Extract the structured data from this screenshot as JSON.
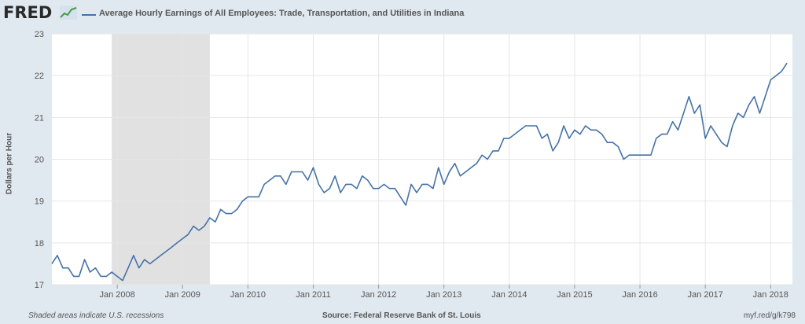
{
  "header": {
    "logo_text": "FRED",
    "logo_icon": "small-line-graph-icon"
  },
  "footer": {
    "left": "Shaded areas indicate U.S. recessions",
    "source": "Source: Federal Reserve Bank of St. Louis",
    "link": "myf.red/g/k798"
  },
  "colors": {
    "background": "#e1e9f0",
    "plot_background": "#ffffff",
    "line": "#4572a7",
    "recession": "#e1e1e1",
    "grid": "#e6e6e6"
  },
  "chart_data": {
    "type": "line",
    "title": "Average Hourly Earnings of All Employees: Trade, Transportation, and Utilities in Indiana",
    "xlabel": "",
    "ylabel": "Dollars per Hour",
    "ylim": [
      17,
      23
    ],
    "yticks": [
      17,
      18,
      19,
      20,
      21,
      22,
      23
    ],
    "xlim": [
      "2007-01",
      "2018-05"
    ],
    "xticks": [
      "Jan 2008",
      "Jan 2009",
      "Jan 2010",
      "Jan 2011",
      "Jan 2012",
      "Jan 2013",
      "Jan 2014",
      "Jan 2015",
      "Jan 2016",
      "Jan 2017",
      "Jan 2018"
    ],
    "grid": true,
    "legend": "top-left",
    "recessions": [
      {
        "start": "2007-12",
        "end": "2009-06"
      }
    ],
    "series": [
      {
        "name": "Average Hourly Earnings of All Employees: Trade, Transportation, and Utilities in Indiana",
        "x": [
          "2007-01",
          "2007-02",
          "2007-03",
          "2007-04",
          "2007-05",
          "2007-06",
          "2007-07",
          "2007-08",
          "2007-09",
          "2007-10",
          "2007-11",
          "2007-12",
          "2008-01",
          "2008-02",
          "2008-03",
          "2008-04",
          "2008-05",
          "2008-06",
          "2008-07",
          "2008-08",
          "2008-09",
          "2008-10",
          "2008-11",
          "2008-12",
          "2009-01",
          "2009-02",
          "2009-03",
          "2009-04",
          "2009-05",
          "2009-06",
          "2009-07",
          "2009-08",
          "2009-09",
          "2009-10",
          "2009-11",
          "2009-12",
          "2010-01",
          "2010-02",
          "2010-03",
          "2010-04",
          "2010-05",
          "2010-06",
          "2010-07",
          "2010-08",
          "2010-09",
          "2010-10",
          "2010-11",
          "2010-12",
          "2011-01",
          "2011-02",
          "2011-03",
          "2011-04",
          "2011-05",
          "2011-06",
          "2011-07",
          "2011-08",
          "2011-09",
          "2011-10",
          "2011-11",
          "2011-12",
          "2012-01",
          "2012-02",
          "2012-03",
          "2012-04",
          "2012-05",
          "2012-06",
          "2012-07",
          "2012-08",
          "2012-09",
          "2012-10",
          "2012-11",
          "2012-12",
          "2013-01",
          "2013-02",
          "2013-03",
          "2013-04",
          "2013-05",
          "2013-06",
          "2013-07",
          "2013-08",
          "2013-09",
          "2013-10",
          "2013-11",
          "2013-12",
          "2014-01",
          "2014-02",
          "2014-03",
          "2014-04",
          "2014-05",
          "2014-06",
          "2014-07",
          "2014-08",
          "2014-09",
          "2014-10",
          "2014-11",
          "2014-12",
          "2015-01",
          "2015-02",
          "2015-03",
          "2015-04",
          "2015-05",
          "2015-06",
          "2015-07",
          "2015-08",
          "2015-09",
          "2015-10",
          "2015-11",
          "2015-12",
          "2016-01",
          "2016-02",
          "2016-03",
          "2016-04",
          "2016-05",
          "2016-06",
          "2016-07",
          "2016-08",
          "2016-09",
          "2016-10",
          "2016-11",
          "2016-12",
          "2017-01",
          "2017-02",
          "2017-03",
          "2017-04",
          "2017-05",
          "2017-06",
          "2017-07",
          "2017-08",
          "2017-09",
          "2017-10",
          "2017-11",
          "2017-12",
          "2018-01",
          "2018-02",
          "2018-03",
          "2018-04"
        ],
        "values": [
          17.5,
          17.7,
          17.4,
          17.4,
          17.2,
          17.2,
          17.6,
          17.3,
          17.4,
          17.2,
          17.2,
          17.3,
          17.2,
          17.1,
          17.4,
          17.7,
          17.4,
          17.6,
          17.5,
          17.6,
          17.7,
          17.8,
          17.9,
          18.0,
          18.1,
          18.2,
          18.4,
          18.3,
          18.4,
          18.6,
          18.5,
          18.8,
          18.7,
          18.7,
          18.8,
          19.0,
          19.1,
          19.1,
          19.1,
          19.4,
          19.5,
          19.6,
          19.6,
          19.4,
          19.7,
          19.7,
          19.7,
          19.5,
          19.8,
          19.4,
          19.2,
          19.3,
          19.6,
          19.2,
          19.4,
          19.4,
          19.3,
          19.6,
          19.5,
          19.3,
          19.3,
          19.4,
          19.3,
          19.3,
          19.1,
          18.9,
          19.4,
          19.2,
          19.4,
          19.4,
          19.3,
          19.8,
          19.4,
          19.7,
          19.9,
          19.6,
          19.7,
          19.8,
          19.9,
          20.1,
          20.0,
          20.2,
          20.2,
          20.5,
          20.5,
          20.6,
          20.7,
          20.8,
          20.8,
          20.8,
          20.5,
          20.6,
          20.2,
          20.4,
          20.8,
          20.5,
          20.7,
          20.6,
          20.8,
          20.7,
          20.7,
          20.6,
          20.4,
          20.4,
          20.3,
          20.0,
          20.1,
          20.1,
          20.1,
          20.1,
          20.1,
          20.5,
          20.6,
          20.6,
          20.9,
          20.7,
          21.1,
          21.5,
          21.1,
          21.3,
          20.5,
          20.8,
          20.6,
          20.4,
          20.3,
          20.8,
          21.1,
          21.0,
          21.3,
          21.5,
          21.1,
          21.5,
          21.9,
          22.0,
          22.1,
          22.3
        ]
      }
    ]
  }
}
